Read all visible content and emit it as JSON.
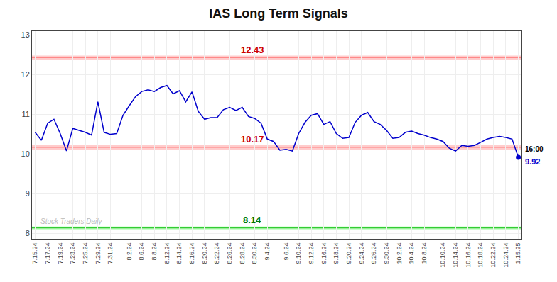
{
  "chart_data": {
    "type": "line",
    "title": "IAS Long Term Signals",
    "color": "#0000cc",
    "categories": [
      "7.15.24",
      null,
      "7.17.24",
      null,
      "7.19.24",
      null,
      "7.23.24",
      null,
      "7.25.24",
      null,
      "7.29.24",
      null,
      "7.31.24",
      null,
      null,
      "8.2.24",
      null,
      "8.6.24",
      null,
      "8.8.24",
      null,
      "8.12.24",
      null,
      "8.14.24",
      null,
      "8.16.24",
      null,
      "8.20.24",
      null,
      "8.22.24",
      null,
      "8.26.24",
      null,
      "8.28.24",
      null,
      "8.30.24",
      null,
      "9.4.24",
      null,
      null,
      "9.6.24",
      null,
      "9.10.24",
      null,
      "9.12.24",
      null,
      "9.16.24",
      null,
      "9.18.24",
      null,
      "9.20.24",
      null,
      "9.24.24",
      null,
      "9.26.24",
      null,
      "9.30.24",
      null,
      "10.2.24",
      null,
      "10.4.24",
      null,
      "10.8.24",
      null,
      null,
      "10.10.24",
      null,
      "10.14.24",
      null,
      "10.16.24",
      null,
      "10.18.24",
      null,
      "10.22.24",
      null,
      "10.24.24",
      null,
      "1.15.25"
    ],
    "values": [
      10.55,
      10.35,
      10.78,
      10.88,
      10.52,
      10.08,
      10.65,
      10.6,
      10.55,
      10.48,
      11.32,
      10.55,
      10.5,
      10.52,
      10.98,
      11.22,
      11.45,
      11.58,
      11.62,
      11.58,
      11.68,
      11.73,
      11.52,
      11.6,
      11.32,
      11.57,
      11.08,
      10.88,
      10.92,
      10.92,
      11.12,
      11.18,
      11.1,
      11.18,
      10.95,
      10.9,
      10.78,
      10.38,
      10.32,
      10.1,
      10.12,
      10.08,
      10.52,
      10.8,
      10.98,
      11.02,
      10.75,
      10.82,
      10.52,
      10.4,
      10.42,
      10.8,
      10.98,
      11.05,
      10.82,
      10.75,
      10.6,
      10.4,
      10.42,
      10.55,
      10.58,
      10.52,
      10.48,
      10.42,
      10.38,
      10.32,
      10.15,
      10.08,
      10.22,
      10.2,
      10.22,
      10.3,
      10.38,
      10.42,
      10.45,
      10.42,
      10.38,
      9.92
    ],
    "ylim": [
      7.85,
      13.1
    ],
    "yticks": [
      8,
      9,
      10,
      11,
      12,
      13
    ],
    "grid": true,
    "hlines": [
      {
        "value": 12.43,
        "band": 0.055,
        "label": "12.43",
        "color": "#ff8888",
        "band_color": "#ffcccc",
        "label_color": "#cc0000"
      },
      {
        "value": 10.17,
        "band": 0.055,
        "label": "10.17",
        "color": "#ff8888",
        "band_color": "#ffcccc",
        "label_color": "#cc0000"
      },
      {
        "value": 8.14,
        "band": 0.04,
        "label": "8.14",
        "color": "#00bb00",
        "band_color": "#ccffcc",
        "label_color": "#007700"
      }
    ],
    "annotations": [
      {
        "text": "16:00",
        "x": 77,
        "y": 9.92,
        "color": "#000000"
      },
      {
        "text": "9.92",
        "x": 77,
        "y": 9.92,
        "color": "#0000cc"
      },
      {
        "text": "Stock Traders Daily",
        "x": 0,
        "y": 8.14,
        "color": "#bbbbbb"
      }
    ]
  }
}
